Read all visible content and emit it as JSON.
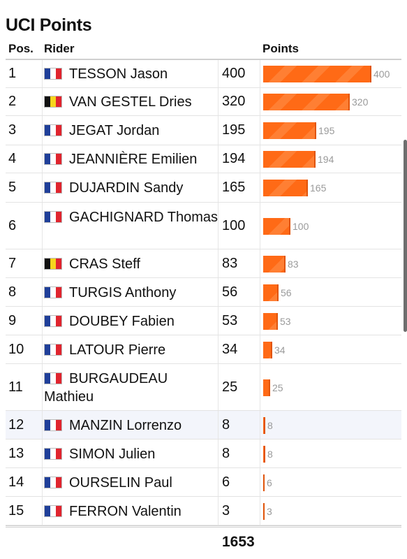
{
  "title": "UCI Points",
  "columns": {
    "pos": "Pos.",
    "rider": "Rider",
    "points": "Points"
  },
  "rows": [
    {
      "pos": "1",
      "flag": "fr",
      "rider": "TESSON Jason",
      "points": 400
    },
    {
      "pos": "2",
      "flag": "be",
      "rider": "VAN GESTEL Dries",
      "points": 320
    },
    {
      "pos": "3",
      "flag": "fr",
      "rider": "JEGAT Jordan",
      "points": 195
    },
    {
      "pos": "4",
      "flag": "fr",
      "rider": "JEANNIÈRE Emilien",
      "points": 194
    },
    {
      "pos": "5",
      "flag": "fr",
      "rider": "DUJARDIN Sandy",
      "points": 165
    },
    {
      "pos": "6",
      "flag": "fr",
      "rider": "GACHIGNARD Thomas",
      "points": 100
    },
    {
      "pos": "7",
      "flag": "be",
      "rider": "CRAS Steff",
      "points": 83
    },
    {
      "pos": "8",
      "flag": "fr",
      "rider": "TURGIS Anthony",
      "points": 56
    },
    {
      "pos": "9",
      "flag": "fr",
      "rider": "DOUBEY Fabien",
      "points": 53
    },
    {
      "pos": "10",
      "flag": "fr",
      "rider": "LATOUR Pierre",
      "points": 34
    },
    {
      "pos": "11",
      "flag": "fr",
      "rider": "BURGAUDEAU Mathieu",
      "points": 25
    },
    {
      "pos": "12",
      "flag": "fr",
      "rider": "MANZIN Lorrenzo",
      "points": 8
    },
    {
      "pos": "13",
      "flag": "fr",
      "rider": "SIMON Julien",
      "points": 8
    },
    {
      "pos": "14",
      "flag": "fr",
      "rider": "OURSELIN Paul",
      "points": 6
    },
    {
      "pos": "15",
      "flag": "fr",
      "rider": "FERRON Valentin",
      "points": 3
    }
  ],
  "total": "1653",
  "colors": {
    "bar": "#ff6a16",
    "bar_stripe": "#ff7f33",
    "highlight_row": "#f3f5fb"
  }
}
